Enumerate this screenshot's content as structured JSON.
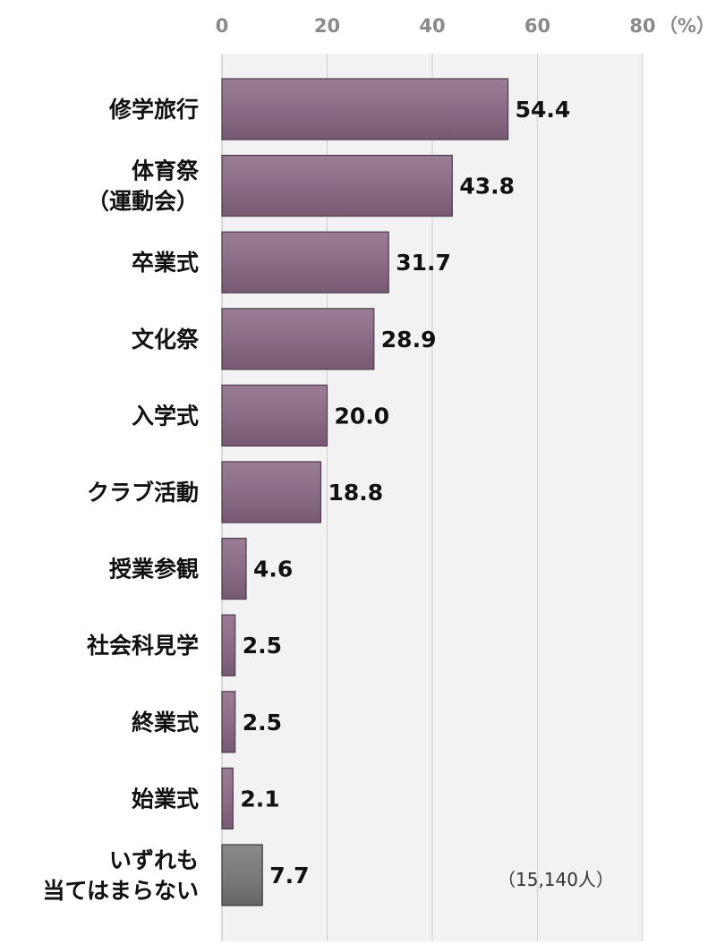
{
  "chart_data": {
    "type": "bar",
    "orientation": "horizontal",
    "unit_label": "（%）",
    "xlim": [
      0,
      80
    ],
    "xticks": [
      0,
      20,
      40,
      60,
      80
    ],
    "grid": true,
    "categories": [
      [
        "修学旅行"
      ],
      [
        "体育祭",
        "（運動会）"
      ],
      [
        "卒業式"
      ],
      [
        "文化祭"
      ],
      [
        "入学式"
      ],
      [
        "クラブ活動"
      ],
      [
        "授業参観"
      ],
      [
        "社会科見学"
      ],
      [
        "終業式"
      ],
      [
        "始業式"
      ],
      [
        "いずれも",
        "当てはまらない"
      ]
    ],
    "values": [
      54.4,
      43.8,
      31.7,
      28.9,
      20.0,
      18.8,
      4.6,
      2.5,
      2.5,
      2.1,
      7.7
    ],
    "value_labels": [
      "54.4",
      "43.8",
      "31.7",
      "28.9",
      "20.0",
      "18.8",
      "4.6",
      "2.5",
      "2.5",
      "2.1",
      "7.7"
    ],
    "bar_colors": [
      "#8b6c85",
      "#8b6c85",
      "#8b6c85",
      "#8b6c85",
      "#8b6c85",
      "#8b6c85",
      "#8b6c85",
      "#8b6c85",
      "#8b6c85",
      "#8b6c85",
      "#7b7b7b"
    ],
    "note": "（15,140人）"
  }
}
